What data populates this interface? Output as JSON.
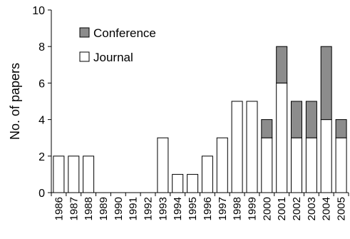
{
  "chart_data": {
    "type": "bar",
    "stacked": true,
    "categories": [
      "1986",
      "1987",
      "1988",
      "1989",
      "1990",
      "1991",
      "1992",
      "1993",
      "1994",
      "1995",
      "1996",
      "1997",
      "1998",
      "1999",
      "2000",
      "2001",
      "2002",
      "2003",
      "2004",
      "2005"
    ],
    "series": [
      {
        "name": "Journal",
        "color": "#ffffff",
        "values": [
          2,
          2,
          2,
          0,
          0,
          0,
          0,
          3,
          1,
          1,
          2,
          3,
          5,
          5,
          3,
          6,
          3,
          3,
          4,
          3
        ]
      },
      {
        "name": "Conference",
        "color": "#8c8c8c",
        "values": [
          0,
          0,
          0,
          0,
          0,
          0,
          0,
          0,
          0,
          0,
          0,
          0,
          0,
          0,
          1,
          2,
          2,
          2,
          4,
          1
        ]
      }
    ],
    "title": "",
    "xlabel": "",
    "ylabel": "No. of papers",
    "ylim": [
      0,
      10
    ],
    "yticks": [
      0,
      2,
      4,
      6,
      8,
      10
    ],
    "grid": false,
    "legend_position": "top-left"
  }
}
